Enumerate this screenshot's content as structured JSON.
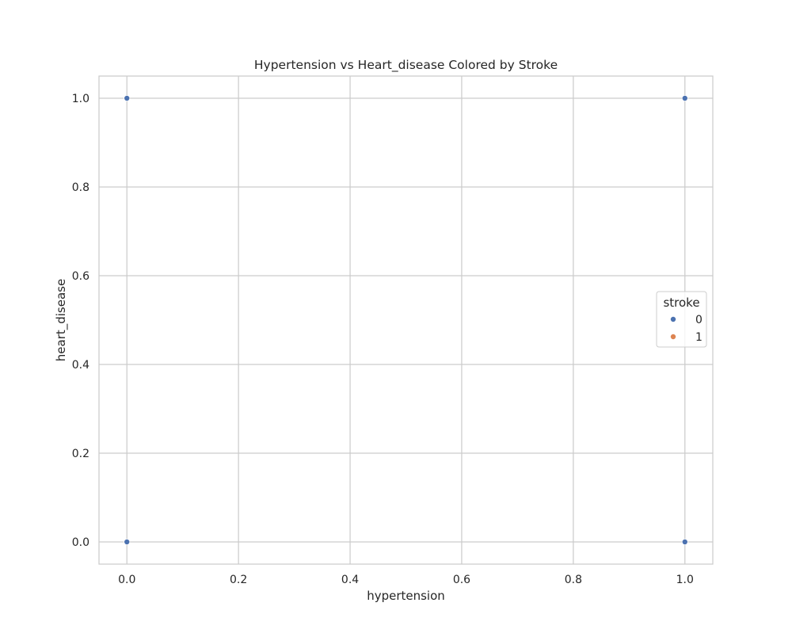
{
  "chart_data": {
    "type": "scatter",
    "title": "Hypertension vs Heart_disease Colored by Stroke",
    "xlabel": "hypertension",
    "ylabel": "heart_disease",
    "xlim": [
      -0.05,
      1.05
    ],
    "ylim": [
      -0.05,
      1.05
    ],
    "xticks": [
      0.0,
      0.2,
      0.4,
      0.6,
      0.8,
      1.0
    ],
    "xtick_labels": [
      "0.0",
      "0.2",
      "0.4",
      "0.6",
      "0.8",
      "1.0"
    ],
    "yticks": [
      0.0,
      0.2,
      0.4,
      0.6,
      0.8,
      1.0
    ],
    "ytick_labels": [
      "0.0",
      "0.2",
      "0.4",
      "0.6",
      "0.8",
      "1.0"
    ],
    "grid": true,
    "legend": {
      "title": "stroke",
      "placement": "center-right",
      "entries": [
        {
          "label": "0",
          "color": "#4c72b0"
        },
        {
          "label": "1",
          "color": "#dd8452"
        }
      ]
    },
    "series": [
      {
        "name": "0",
        "color": "#4c72b0",
        "points": [
          {
            "x": 0,
            "y": 0
          },
          {
            "x": 0,
            "y": 1
          },
          {
            "x": 1,
            "y": 0
          },
          {
            "x": 1,
            "y": 1
          }
        ]
      },
      {
        "name": "1",
        "color": "#dd8452",
        "points": []
      }
    ]
  }
}
